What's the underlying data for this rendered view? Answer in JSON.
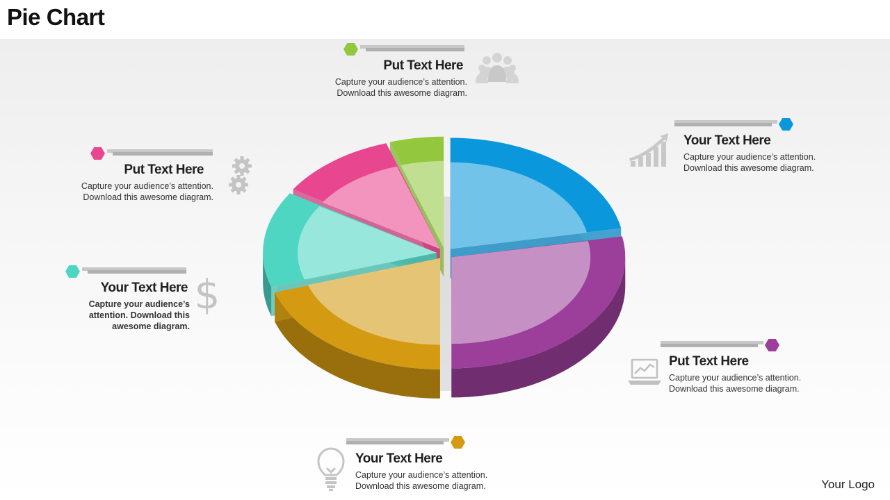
{
  "title": "Pie Chart",
  "logo": "Your Logo",
  "colors": {
    "blue": "#0a97dc",
    "purple": "#9b3f9a",
    "orange": "#d49a12",
    "teal": "#4ed6c3",
    "pink": "#e8468f",
    "green": "#93c83e"
  },
  "callouts": [
    {
      "heading": "Put Text Here",
      "body": "Capture your audience’s attention.\nDownload this awesome diagram.",
      "color": "#93c83e",
      "icon": "people-icon"
    },
    {
      "heading": "Your Text Here",
      "body": "Capture your audience’s attention.\nDownload this awesome diagram.",
      "color": "#0a97dc",
      "icon": "growth-chart-icon"
    },
    {
      "heading": "Put Text Here",
      "body": "Capture your audience’s attention.\nDownload this awesome diagram.",
      "color": "#e8468f",
      "icon": "gears-icon"
    },
    {
      "heading": "Your Text Here",
      "body": "Capture your audience’s\nattention. Download this\nawesome diagram.",
      "color": "#4ed6c3",
      "icon": "dollar-icon"
    },
    {
      "heading": "Put Text Here",
      "body": "Capture your audience’s attention.\nDownload this awesome diagram.",
      "color": "#9b3f9a",
      "icon": "laptop-chart-icon"
    },
    {
      "heading": "Your Text Here",
      "body": "Capture your audience’s attention.\nDownload this awesome diagram.",
      "color": "#d49a12",
      "icon": "lightbulb-icon"
    }
  ],
  "chart_data": {
    "type": "pie",
    "style": "3d-exploded",
    "title": "",
    "slices": [
      {
        "value": 22,
        "color": "#0a97dc"
      },
      {
        "value": 28,
        "color": "#9b3f9a"
      },
      {
        "value": 20,
        "color": "#d49a12"
      },
      {
        "value": 14,
        "color": "#4ed6c3"
      },
      {
        "value": 11,
        "color": "#e8468f"
      },
      {
        "value": 5,
        "color": "#93c83e"
      }
    ]
  }
}
